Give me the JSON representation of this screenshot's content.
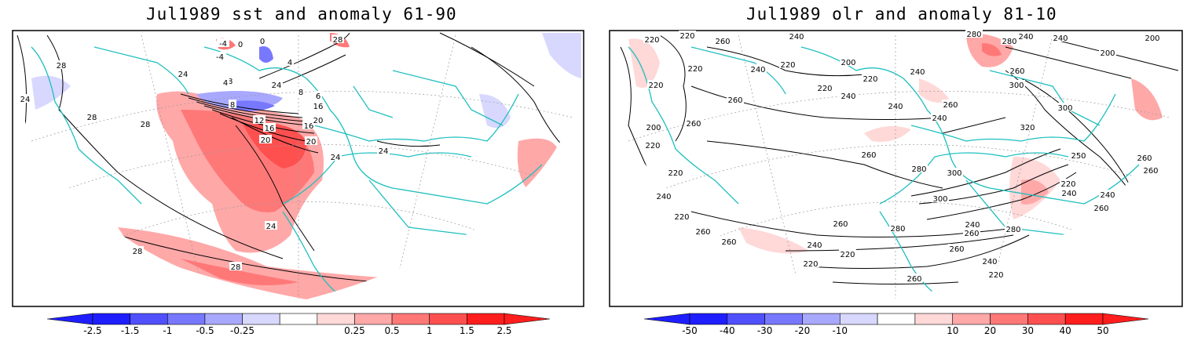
{
  "left_panel": {
    "title": "Jul1989 sst and anomaly 61-90",
    "contour_labels": [
      "28",
      "24",
      "28",
      "28",
      "28",
      "-4",
      "0",
      "-4",
      "4",
      "0",
      "24",
      "8",
      "4",
      "8",
      "6",
      "12",
      "16",
      "16",
      "20",
      "20",
      "24",
      "24",
      "20",
      "24",
      "28",
      "28",
      "24",
      "28",
      "16"
    ],
    "colorbar_ticks": [
      "-2.5",
      "-1.5",
      "-1",
      "-0.5",
      "-0.25",
      "0.25",
      "0.5",
      "1",
      "1.5",
      "2.5"
    ]
  },
  "right_panel": {
    "title": "Jul1989 olr and anomaly 81-10",
    "contour_labels": [
      "220",
      "220",
      "260",
      "240",
      "280",
      "240",
      "240",
      "200",
      "280",
      "200",
      "220",
      "220",
      "220",
      "240",
      "200",
      "220",
      "220",
      "240",
      "260",
      "300",
      "260",
      "240",
      "260",
      "240",
      "240",
      "320",
      "300",
      "200",
      "220",
      "260",
      "220",
      "240",
      "260",
      "280",
      "300",
      "250",
      "260",
      "260",
      "220",
      "240",
      "220",
      "260",
      "240",
      "260",
      "300",
      "280",
      "280",
      "260",
      "260",
      "240",
      "220",
      "220",
      "260",
      "240",
      "220",
      "260",
      "240",
      "260"
    ],
    "colorbar_ticks": [
      "-50",
      "-40",
      "-30",
      "-20",
      "-10",
      "10",
      "20",
      "30",
      "40",
      "50"
    ]
  },
  "colors": {
    "neg": [
      "#1e1eff",
      "#5050ff",
      "#7878ff",
      "#a8a8ff",
      "#d8d8ff"
    ],
    "pos": [
      "#ffd8d8",
      "#ffa8a8",
      "#ff7878",
      "#ff5050",
      "#ff1e1e"
    ],
    "coast": "#1fbfbf",
    "contour": "#000000"
  }
}
